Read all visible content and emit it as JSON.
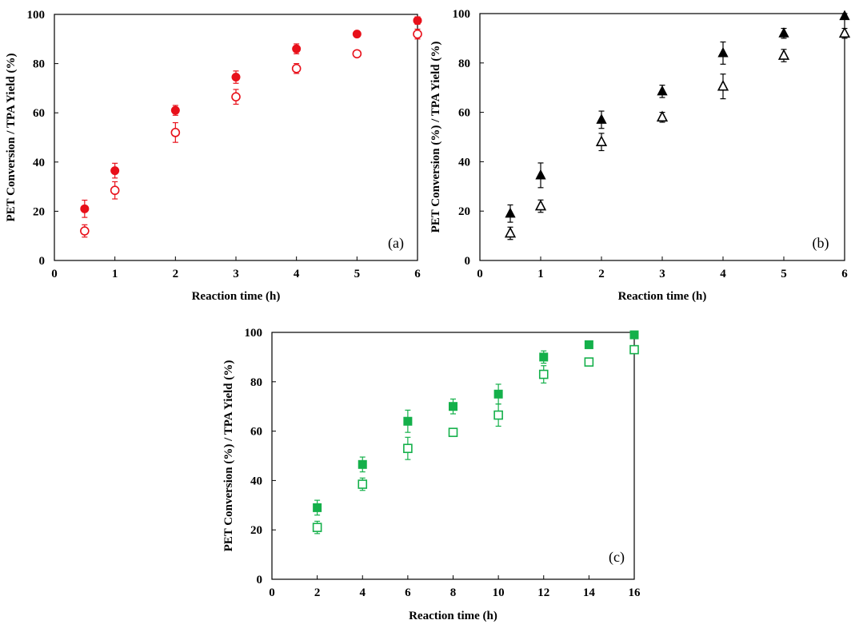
{
  "chart_data": [
    {
      "type": "scatter",
      "panel_label": "(a)",
      "xlabel": "Reaction time (h)",
      "ylabel": "PET Conversion / TPA Yield (%)",
      "xlim": [
        0,
        6
      ],
      "ylim": [
        0,
        100
      ],
      "xticks": [
        0,
        1,
        2,
        3,
        4,
        5,
        6
      ],
      "yticks": [
        0,
        20,
        40,
        60,
        80,
        100
      ],
      "color": "#e8101a",
      "series": [
        {
          "marker": "circle-filled",
          "x": [
            0.5,
            1,
            2,
            3,
            4,
            5,
            6
          ],
          "y": [
            21,
            36.5,
            61,
            74.5,
            86,
            92,
            97.5
          ],
          "err": [
            3.5,
            3,
            2,
            2.5,
            2,
            1,
            1.5
          ]
        },
        {
          "marker": "circle-open",
          "x": [
            0.5,
            1,
            2,
            3,
            4,
            5,
            6
          ],
          "y": [
            12,
            28.5,
            52,
            66.5,
            78,
            84,
            92
          ],
          "err": [
            2.5,
            3.5,
            4,
            3,
            2,
            1,
            2
          ]
        }
      ]
    },
    {
      "type": "scatter",
      "panel_label": "(b)",
      "xlabel": "Reaction time (h)",
      "ylabel": "PET Conversion (%) / TPA Yield (%)",
      "xlim": [
        0,
        6
      ],
      "ylim": [
        0,
        100
      ],
      "xticks": [
        0,
        1,
        2,
        3,
        4,
        5,
        6
      ],
      "yticks": [
        0,
        20,
        40,
        60,
        80,
        100
      ],
      "color": "#000000",
      "series": [
        {
          "marker": "triangle-filled",
          "x": [
            0.5,
            1,
            2,
            3,
            4,
            5,
            6
          ],
          "y": [
            19,
            34.5,
            57,
            68.5,
            84,
            92,
            99
          ],
          "err": [
            3.5,
            5,
            3.5,
            2.5,
            4.5,
            2,
            1
          ]
        },
        {
          "marker": "triangle-open",
          "x": [
            0.5,
            1,
            2,
            3,
            4,
            5,
            6
          ],
          "y": [
            11,
            22,
            48,
            58,
            70.5,
            83,
            92
          ],
          "err": [
            2.5,
            2.5,
            3.5,
            2,
            5,
            2.5,
            2
          ]
        }
      ]
    },
    {
      "type": "scatter",
      "panel_label": "(c)",
      "xlabel": "Reaction time (h)",
      "ylabel": "PET Conversion (%) / TPA Yield (%)",
      "xlim": [
        0,
        16
      ],
      "ylim": [
        0,
        100
      ],
      "xticks": [
        0,
        2,
        4,
        6,
        8,
        10,
        12,
        14,
        16
      ],
      "yticks": [
        0,
        20,
        40,
        60,
        80,
        100
      ],
      "color": "#14b04a",
      "series": [
        {
          "marker": "square-filled",
          "x": [
            2,
            4,
            6,
            8,
            10,
            12,
            14,
            16
          ],
          "y": [
            29,
            46.5,
            64,
            70,
            75,
            90,
            95,
            99
          ],
          "err": [
            3,
            3,
            4.5,
            3,
            4,
            2.5,
            1,
            1
          ]
        },
        {
          "marker": "square-open",
          "x": [
            2,
            4,
            6,
            8,
            10,
            12,
            14,
            16
          ],
          "y": [
            21,
            38.5,
            53,
            59.5,
            66.5,
            83,
            88,
            93
          ],
          "err": [
            2.5,
            2.5,
            4.5,
            1,
            4.5,
            3.5,
            1.5,
            1
          ]
        }
      ]
    }
  ]
}
